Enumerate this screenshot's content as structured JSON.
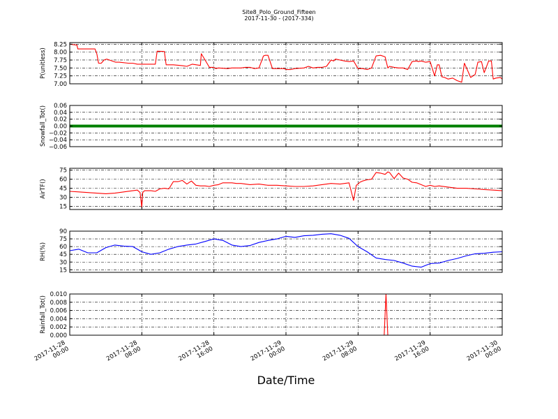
{
  "title": "Site8_Polo_Ground_Fifteen",
  "subtitle": "2017-11-30 - (2017-334)",
  "xlabel": "Date/Time",
  "x_ticks": [
    {
      "t": 0,
      "line1": "2017-11-28",
      "line2": "00:00"
    },
    {
      "t": 8,
      "line1": "2017-11-28",
      "line2": "08:00"
    },
    {
      "t": 16,
      "line1": "2017-11-28",
      "line2": "16:00"
    },
    {
      "t": 24,
      "line1": "2017-11-29",
      "line2": "00:00"
    },
    {
      "t": 32,
      "line1": "2017-11-29",
      "line2": "08:00"
    },
    {
      "t": 40,
      "line1": "2017-11-29",
      "line2": "16:00"
    },
    {
      "t": 48,
      "line1": "2017-11-30",
      "line2": "00:00"
    }
  ],
  "chart_data": [
    {
      "type": "line",
      "ylabel": "P(unitless)",
      "ylim": [
        7.0,
        8.3
      ],
      "yticks": [
        7.0,
        7.25,
        7.5,
        7.75,
        8.0,
        8.25
      ],
      "ytick_labels": [
        "7.00",
        "7.25",
        "7.50",
        "7.75",
        "8.00",
        "8.25"
      ],
      "grid": true,
      "series": [
        {
          "color": "#ff0000",
          "x": [
            0,
            0.8,
            0.9,
            1.2,
            2.8,
            3.0,
            3.2,
            3.5,
            3.8,
            4.1,
            5.1,
            5.5,
            6.5,
            7.0,
            7.5,
            8.0,
            9.5,
            9.7,
            10.5,
            10.7,
            11.5,
            12.5,
            13.0,
            13.6,
            14.5,
            14.6,
            15.5,
            16.0,
            16.2,
            16.5,
            17.5,
            18.0,
            19.0,
            19.5,
            20.0,
            20.5,
            21.0,
            21.5,
            21.7,
            22.0,
            22.5,
            22.7,
            23.5,
            23.8,
            24.0,
            24.5,
            25.0,
            26.0,
            26.5,
            27.0,
            27.5,
            28.0,
            28.5,
            29.0,
            29.3,
            29.5,
            30.0,
            30.5,
            31.0,
            31.5,
            32.0,
            32.5,
            33.0,
            33.5,
            34.0,
            34.5,
            35.0,
            35.3,
            35.5,
            36.0,
            36.5,
            37.0,
            37.5,
            38.0,
            38.5,
            38.7,
            39.0,
            39.5,
            40.0,
            40.5,
            40.8,
            41.0,
            41.3,
            41.6,
            42.0,
            42.5,
            43.0,
            43.5,
            43.8,
            44.5,
            45.0,
            45.3,
            45.7,
            46.0,
            46.5,
            46.8,
            47.0,
            47.3,
            47.8,
            48.0
          ],
          "y": [
            8.25,
            8.22,
            8.1,
            8.1,
            8.1,
            7.95,
            7.65,
            7.65,
            7.75,
            7.78,
            7.68,
            7.68,
            7.65,
            7.65,
            7.62,
            7.62,
            7.62,
            8.03,
            8.02,
            7.6,
            7.6,
            7.57,
            7.55,
            7.62,
            7.58,
            7.95,
            7.52,
            7.52,
            7.48,
            7.5,
            7.48,
            7.5,
            7.5,
            7.52,
            7.52,
            7.48,
            7.5,
            7.88,
            7.9,
            7.9,
            7.48,
            7.48,
            7.48,
            7.48,
            7.45,
            7.45,
            7.48,
            7.5,
            7.55,
            7.5,
            7.52,
            7.52,
            7.55,
            7.75,
            7.72,
            7.78,
            7.75,
            7.72,
            7.7,
            7.72,
            7.48,
            7.48,
            7.45,
            7.5,
            7.88,
            7.9,
            7.85,
            7.5,
            7.55,
            7.52,
            7.5,
            7.5,
            7.45,
            7.7,
            7.72,
            7.7,
            7.72,
            7.68,
            7.7,
            7.25,
            7.6,
            7.6,
            7.22,
            7.2,
            7.15,
            7.18,
            7.1,
            7.05,
            7.65,
            7.2,
            7.3,
            7.68,
            7.7,
            7.35,
            7.72,
            7.72,
            7.15,
            7.18,
            7.2,
            7.15
          ]
        }
      ]
    },
    {
      "type": "line",
      "ylabel": "Snowfall_Tot()",
      "ylim": [
        -0.06,
        0.06
      ],
      "yticks": [
        -0.06,
        -0.04,
        -0.02,
        0.0,
        0.02,
        0.04,
        0.06
      ],
      "ytick_labels": [
        "−0.06",
        "−0.04",
        "−0.02",
        "0.00",
        "0.02",
        "0.04",
        "0.06"
      ],
      "grid": true,
      "series": [
        {
          "color": "#008000",
          "style": "thick",
          "x": [
            0,
            48
          ],
          "y": [
            0,
            0
          ]
        }
      ]
    },
    {
      "type": "line",
      "ylabel": "AirTF()",
      "ylim": [
        10,
        78
      ],
      "yticks": [
        15,
        30,
        45,
        60,
        75
      ],
      "ytick_labels": [
        "15",
        "30",
        "45",
        "60",
        "75"
      ],
      "grid": true,
      "series": [
        {
          "color": "#ff0000",
          "x": [
            0,
            1,
            2,
            3,
            4,
            5,
            6,
            7,
            7.5,
            7.8,
            8.0,
            8.1,
            8.3,
            9.0,
            9.5,
            10.0,
            10.5,
            11.0,
            11.5,
            12.0,
            12.5,
            13.0,
            13.5,
            14.0,
            14.5,
            15.0,
            15.5,
            16.0,
            16.5,
            17.0,
            17.5,
            18.0,
            18.5,
            19.0,
            20.0,
            21.0,
            22.0,
            23.0,
            24.0,
            25.0,
            26.0,
            27.0,
            28.0,
            29.0,
            30.0,
            31.0,
            31.5,
            31.8,
            32.0,
            32.2,
            32.5,
            33.0,
            33.5,
            34.0,
            34.5,
            35.0,
            35.3,
            35.5,
            36.0,
            36.5,
            37.0,
            37.5,
            38.0,
            38.5,
            39.0,
            39.5,
            40.0,
            40.5,
            41.0,
            42.0,
            43.0,
            44.0,
            45.0,
            46.0,
            47.0,
            48.0
          ],
          "y": [
            40,
            39,
            38,
            37,
            36,
            37,
            39,
            41,
            42,
            38,
            13,
            38,
            41,
            41,
            40,
            44,
            45,
            44,
            56,
            56,
            58,
            52,
            57,
            50,
            49,
            49,
            48,
            50,
            51,
            54,
            54,
            54,
            53,
            53,
            51,
            52,
            50,
            50,
            49,
            48,
            48,
            49,
            51,
            53,
            52,
            54,
            25,
            50,
            52,
            55,
            57,
            59,
            60,
            71,
            70,
            68,
            72,
            71,
            61,
            70,
            62,
            60,
            55,
            54,
            51,
            48,
            50,
            48,
            49,
            47,
            45,
            45,
            44,
            43,
            42,
            41
          ]
        }
      ]
    },
    {
      "type": "line",
      "ylabel": "RH(%)",
      "ylim": [
        10,
        90
      ],
      "yticks": [
        15,
        30,
        45,
        60,
        75,
        90
      ],
      "ytick_labels": [
        "15",
        "30",
        "45",
        "60",
        "75",
        "90"
      ],
      "grid": true,
      "series": [
        {
          "color": "#0000ff",
          "x": [
            0,
            1,
            2,
            3,
            4,
            5,
            6,
            7,
            8,
            9,
            10,
            11,
            12,
            13,
            14,
            15,
            16,
            17,
            18,
            19,
            20,
            21,
            22,
            23,
            24,
            25,
            26,
            27,
            28,
            29,
            30,
            31,
            32,
            33,
            34,
            35,
            36,
            37,
            38,
            39,
            40,
            41,
            42,
            43,
            44,
            45,
            46,
            47,
            48
          ],
          "y": [
            52,
            55,
            48,
            48,
            58,
            63,
            61,
            60,
            50,
            45,
            48,
            55,
            60,
            63,
            65,
            70,
            75,
            72,
            63,
            60,
            62,
            68,
            72,
            75,
            80,
            78,
            81,
            82,
            84,
            85,
            82,
            76,
            60,
            50,
            38,
            35,
            33,
            28,
            22,
            20,
            27,
            28,
            33,
            37,
            42,
            46,
            47,
            49,
            50
          ]
        }
      ]
    },
    {
      "type": "line",
      "ylabel": "Rainfall_Tot()",
      "ylim": [
        0,
        0.01
      ],
      "yticks": [
        0.0,
        0.002,
        0.004,
        0.006,
        0.008,
        0.01
      ],
      "ytick_labels": [
        "0.000",
        "0.002",
        "0.004",
        "0.006",
        "0.008",
        "0.010"
      ],
      "grid": true,
      "series": [
        {
          "color": "#ff0000",
          "x": [
            0,
            34.9,
            35.1,
            35.3,
            48
          ],
          "y": [
            0,
            0,
            0.01,
            0,
            0
          ]
        }
      ]
    }
  ]
}
